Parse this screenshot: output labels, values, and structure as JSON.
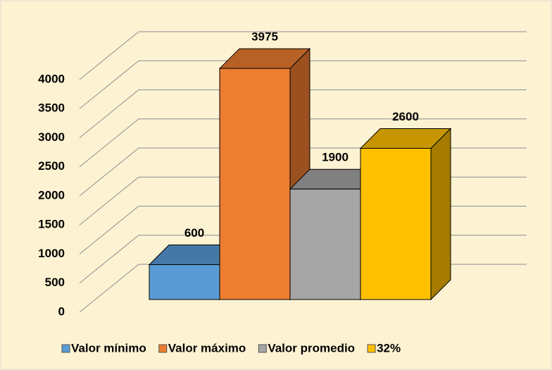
{
  "chart_data": {
    "type": "bar3d",
    "series": [
      {
        "name": "Valor mínimo",
        "color": "#5b9bd5",
        "values": [
          600
        ]
      },
      {
        "name": "Valor máximo",
        "color": "#ed7d31",
        "values": [
          3975
        ]
      },
      {
        "name": "Valor promedio",
        "color": "#a5a5a5",
        "values": [
          1900
        ]
      },
      {
        "name": "32%",
        "color": "#ffc000",
        "values": [
          2600
        ]
      }
    ],
    "ylim": [
      0,
      4000
    ],
    "yticks": [
      0,
      500,
      1000,
      1500,
      2000,
      2500,
      3000,
      3500,
      4000
    ],
    "grid": true,
    "legend": "bottom"
  }
}
